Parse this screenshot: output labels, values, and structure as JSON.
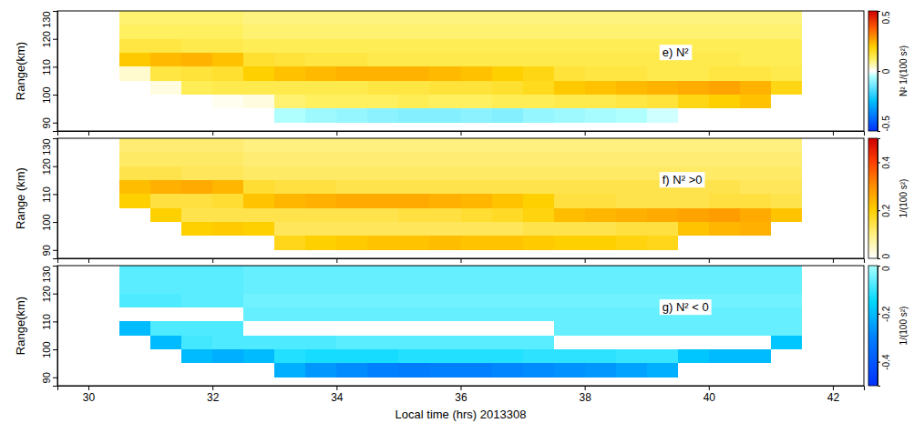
{
  "chart_data": [
    {
      "type": "heatmap",
      "title": "e) N²",
      "y_label": "Range(km)",
      "xlim": [
        29.5,
        42.5
      ],
      "ylim": [
        87,
        130
      ],
      "xticks": [
        30,
        32,
        34,
        36,
        38,
        40,
        42
      ],
      "yticks": [
        90,
        100,
        110,
        120,
        130
      ],
      "tick_labels": "y",
      "x_edges": [
        30.5,
        31,
        31.5,
        32,
        32.5,
        33,
        33.5,
        34,
        34.5,
        35,
        35.5,
        36,
        36.5,
        37,
        37.5,
        38,
        38.5,
        39,
        39.5,
        40,
        40.5,
        41,
        41.5
      ],
      "y_edges": [
        90,
        95,
        100,
        105,
        110,
        115,
        120,
        125,
        130
      ],
      "cells": [
        [
          null,
          null,
          null,
          null,
          null,
          -0.05,
          -0.07,
          -0.08,
          -0.09,
          -0.1,
          -0.1,
          -0.09,
          -0.1,
          -0.08,
          -0.07,
          -0.06,
          -0.05,
          -0.03,
          null,
          null,
          null,
          null
        ],
        [
          null,
          null,
          0.0,
          0.01,
          0.02,
          0.09,
          0.1,
          0.1,
          0.1,
          0.11,
          0.1,
          0.1,
          0.11,
          0.11,
          0.12,
          0.12,
          0.13,
          0.14,
          0.18,
          0.2,
          0.22,
          null
        ],
        [
          null,
          0.02,
          0.11,
          0.12,
          0.12,
          0.12,
          0.12,
          0.12,
          0.13,
          0.13,
          0.14,
          0.14,
          0.15,
          0.17,
          0.21,
          0.22,
          0.23,
          0.24,
          0.25,
          0.26,
          0.24,
          0.18
        ],
        [
          0.03,
          0.13,
          0.14,
          0.15,
          0.2,
          0.22,
          0.23,
          0.24,
          0.24,
          0.24,
          0.23,
          0.22,
          0.2,
          0.18,
          0.14,
          0.13,
          0.13,
          0.12,
          0.12,
          0.13,
          0.13,
          0.12
        ],
        [
          0.21,
          0.23,
          0.24,
          0.22,
          0.15,
          0.14,
          0.13,
          0.13,
          0.12,
          0.12,
          0.12,
          0.12,
          0.12,
          0.12,
          0.12,
          0.12,
          0.12,
          0.12,
          0.12,
          0.12,
          0.11,
          0.11
        ],
        [
          0.13,
          0.13,
          0.12,
          0.12,
          0.11,
          0.11,
          0.11,
          0.11,
          0.11,
          0.11,
          0.11,
          0.11,
          0.11,
          0.11,
          0.11,
          0.11,
          0.11,
          0.11,
          0.11,
          0.11,
          0.11,
          0.11
        ],
        [
          0.1,
          0.1,
          0.1,
          0.1,
          0.09,
          0.09,
          0.09,
          0.09,
          0.09,
          0.09,
          0.09,
          0.09,
          0.09,
          0.09,
          0.09,
          0.09,
          0.09,
          0.09,
          0.09,
          0.09,
          0.09,
          0.09
        ],
        [
          0.09,
          0.09,
          0.09,
          0.09,
          0.08,
          0.08,
          0.08,
          0.08,
          0.08,
          0.08,
          0.08,
          0.08,
          0.08,
          0.08,
          0.08,
          0.08,
          0.08,
          0.08,
          0.08,
          0.08,
          0.08,
          0.08
        ]
      ],
      "colorbar": {
        "lim": [
          -0.5,
          0.5
        ],
        "ticks": [
          -0.5,
          0,
          0.5
        ],
        "label": "N² 1/(100 s²)"
      }
    },
    {
      "type": "heatmap",
      "title": "f) N² >0",
      "y_label": "Range (km)",
      "xlim": [
        29.5,
        42.5
      ],
      "ylim": [
        87,
        130
      ],
      "xticks": [
        30,
        32,
        34,
        36,
        38,
        40,
        42
      ],
      "yticks": [
        90,
        100,
        110,
        120,
        130
      ],
      "tick_labels": "y",
      "x_edges": [
        30.5,
        31,
        31.5,
        32,
        32.5,
        33,
        33.5,
        34,
        34.5,
        35,
        35.5,
        36,
        36.5,
        37,
        37.5,
        38,
        38.5,
        39,
        39.5,
        40,
        40.5,
        41,
        41.5
      ],
      "y_edges": [
        90,
        95,
        100,
        105,
        110,
        115,
        120,
        125,
        130
      ],
      "cells": [
        [
          null,
          null,
          null,
          null,
          null,
          0.18,
          0.2,
          0.21,
          0.22,
          0.22,
          0.23,
          0.22,
          0.22,
          0.21,
          0.2,
          0.2,
          0.19,
          0.18,
          null,
          null,
          null,
          null
        ],
        [
          null,
          null,
          0.2,
          0.21,
          0.2,
          0.13,
          0.13,
          0.13,
          0.13,
          0.13,
          0.13,
          0.13,
          0.13,
          0.14,
          0.14,
          0.14,
          0.15,
          0.15,
          0.22,
          0.24,
          0.25,
          null
        ],
        [
          null,
          0.2,
          0.14,
          0.14,
          0.14,
          0.14,
          0.14,
          0.14,
          0.14,
          0.15,
          0.15,
          0.16,
          0.17,
          0.19,
          0.23,
          0.24,
          0.25,
          0.26,
          0.27,
          0.28,
          0.26,
          0.22
        ],
        [
          0.2,
          0.15,
          0.15,
          0.16,
          0.22,
          0.24,
          0.25,
          0.26,
          0.26,
          0.26,
          0.25,
          0.24,
          0.22,
          0.2,
          0.15,
          0.15,
          0.14,
          0.14,
          0.14,
          0.15,
          0.15,
          0.14
        ],
        [
          0.23,
          0.25,
          0.26,
          0.24,
          0.16,
          0.15,
          0.15,
          0.14,
          0.14,
          0.14,
          0.14,
          0.14,
          0.14,
          0.14,
          0.14,
          0.14,
          0.14,
          0.14,
          0.14,
          0.14,
          0.13,
          0.13
        ],
        [
          0.14,
          0.14,
          0.13,
          0.13,
          0.12,
          0.12,
          0.12,
          0.12,
          0.12,
          0.12,
          0.12,
          0.12,
          0.12,
          0.12,
          0.12,
          0.12,
          0.12,
          0.12,
          0.12,
          0.12,
          0.12,
          0.12
        ],
        [
          0.12,
          0.12,
          0.12,
          0.12,
          0.11,
          0.11,
          0.11,
          0.11,
          0.11,
          0.11,
          0.11,
          0.11,
          0.11,
          0.11,
          0.11,
          0.11,
          0.11,
          0.11,
          0.11,
          0.11,
          0.11,
          0.11
        ],
        [
          0.11,
          0.11,
          0.11,
          0.11,
          0.1,
          0.1,
          0.1,
          0.1,
          0.1,
          0.1,
          0.1,
          0.1,
          0.1,
          0.1,
          0.1,
          0.1,
          0.1,
          0.1,
          0.1,
          0.1,
          0.1,
          0.1
        ]
      ],
      "colorbar": {
        "lim": [
          0,
          0.5
        ],
        "ticks": [
          0,
          0.2,
          0.4
        ],
        "label": "1/(100 s²)"
      }
    },
    {
      "type": "heatmap",
      "title": "g) N² < 0",
      "y_label": "Range(km)",
      "x_label": "Local time (hrs) 2013308",
      "xlim": [
        29.5,
        42.5
      ],
      "ylim": [
        87,
        130
      ],
      "xticks": [
        30,
        32,
        34,
        36,
        38,
        40,
        42
      ],
      "yticks": [
        90,
        100,
        110,
        120,
        130
      ],
      "x_edges": [
        30.5,
        31,
        31.5,
        32,
        32.5,
        33,
        33.5,
        34,
        34.5,
        35,
        35.5,
        36,
        36.5,
        37,
        37.5,
        38,
        38.5,
        39,
        39.5,
        40,
        40.5,
        41,
        41.5
      ],
      "y_edges": [
        90,
        95,
        100,
        105,
        110,
        115,
        120,
        125,
        130
      ],
      "cells": [
        [
          null,
          null,
          null,
          null,
          null,
          -0.22,
          -0.26,
          -0.28,
          -0.3,
          -0.31,
          -0.3,
          -0.3,
          -0.29,
          -0.28,
          -0.27,
          -0.26,
          -0.24,
          -0.22,
          null,
          null,
          null,
          null
        ],
        [
          null,
          null,
          -0.2,
          -0.22,
          -0.2,
          -0.12,
          -0.13,
          -0.13,
          -0.13,
          -0.12,
          -0.12,
          -0.12,
          -0.12,
          -0.11,
          -0.11,
          -0.11,
          -0.1,
          -0.1,
          -0.18,
          -0.2,
          -0.2,
          null
        ],
        [
          null,
          -0.2,
          -0.09,
          -0.08,
          -0.08,
          -0.08,
          -0.08,
          -0.07,
          -0.07,
          -0.07,
          -0.07,
          -0.07,
          -0.07,
          -0.07,
          null,
          null,
          null,
          null,
          null,
          null,
          null,
          -0.18
        ],
        [
          -0.2,
          -0.08,
          -0.08,
          -0.08,
          null,
          null,
          null,
          null,
          null,
          null,
          null,
          null,
          null,
          null,
          -0.06,
          -0.06,
          -0.06,
          -0.06,
          -0.06,
          -0.06,
          -0.06,
          -0.06
        ],
        [
          null,
          null,
          null,
          null,
          -0.06,
          -0.06,
          -0.06,
          -0.06,
          -0.06,
          -0.06,
          -0.06,
          -0.06,
          -0.06,
          -0.06,
          -0.06,
          -0.06,
          -0.06,
          -0.06,
          -0.06,
          -0.06,
          -0.06,
          -0.06
        ],
        [
          -0.08,
          -0.08,
          -0.07,
          -0.07,
          -0.05,
          -0.05,
          -0.05,
          -0.05,
          -0.05,
          -0.05,
          -0.05,
          -0.05,
          -0.05,
          -0.05,
          -0.05,
          -0.05,
          -0.05,
          -0.05,
          -0.05,
          -0.05,
          -0.05,
          -0.05
        ],
        [
          -0.07,
          -0.07,
          -0.07,
          -0.07,
          -0.06,
          -0.06,
          -0.06,
          -0.06,
          -0.06,
          -0.06,
          -0.06,
          -0.06,
          -0.06,
          -0.06,
          -0.06,
          -0.06,
          -0.06,
          -0.06,
          -0.06,
          -0.06,
          -0.06,
          -0.06
        ],
        [
          -0.07,
          -0.07,
          -0.07,
          -0.07,
          -0.06,
          -0.06,
          -0.06,
          -0.06,
          -0.06,
          -0.06,
          -0.06,
          -0.06,
          -0.06,
          -0.06,
          -0.06,
          -0.06,
          -0.06,
          -0.06,
          -0.06,
          -0.06,
          -0.06,
          -0.06
        ]
      ],
      "colorbar": {
        "lim": [
          -0.5,
          0
        ],
        "ticks": [
          -0.4,
          -0.2,
          0
        ],
        "label": "1/(100 s²)"
      }
    }
  ]
}
